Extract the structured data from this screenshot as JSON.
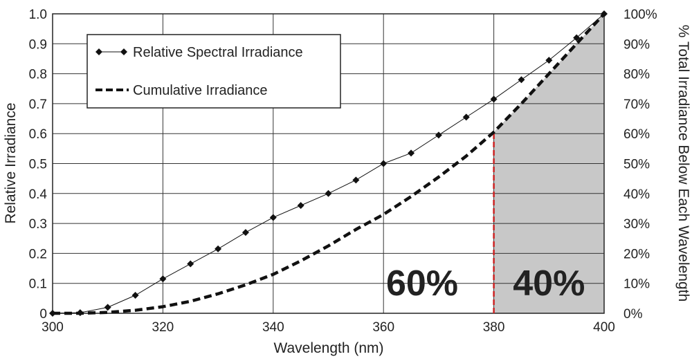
{
  "chart_data": {
    "type": "line",
    "title": "",
    "xlabel": "Wavelength (nm)",
    "ylabel": "Relative Irradiance",
    "y2label": "% Total Irradiance Below Each Wavelength",
    "xlim": [
      300,
      400
    ],
    "ylim": [
      0,
      1.0
    ],
    "y2lim": [
      0,
      100
    ],
    "grid": true,
    "x_ticks": [
      "300",
      "320",
      "340",
      "360",
      "380",
      "400"
    ],
    "y_ticks": [
      "0",
      "0.1",
      "0.2",
      "0.3",
      "0.4",
      "0.5",
      "0.6",
      "0.7",
      "0.8",
      "0.9",
      "1.0"
    ],
    "y2_ticks": [
      "0%",
      "10%",
      "20%",
      "30%",
      "40%",
      "50%",
      "60%",
      "70%",
      "80%",
      "90%",
      "100%"
    ],
    "legend_position": "top-left",
    "series": [
      {
        "name": "Relative Spectral Irradiance",
        "style": "solid-with-diamond-markers",
        "axis": "left",
        "x": [
          300,
          305,
          310,
          315,
          320,
          325,
          330,
          335,
          340,
          345,
          350,
          355,
          360,
          365,
          370,
          375,
          380,
          385,
          390,
          395,
          400
        ],
        "values": [
          0.0,
          0.002,
          0.02,
          0.06,
          0.115,
          0.165,
          0.215,
          0.27,
          0.32,
          0.36,
          0.4,
          0.445,
          0.5,
          0.535,
          0.595,
          0.655,
          0.715,
          0.78,
          0.845,
          0.92,
          1.0
        ]
      },
      {
        "name": "Cumulative Irradiance",
        "style": "dashed",
        "axis": "right",
        "x": [
          300,
          305,
          310,
          315,
          320,
          325,
          330,
          335,
          340,
          345,
          350,
          355,
          360,
          365,
          370,
          375,
          380,
          385,
          390,
          395,
          400
        ],
        "values": [
          0,
          0,
          0.3,
          1,
          2.2,
          4,
          6.5,
          9.5,
          13,
          17.5,
          22.5,
          28,
          33,
          39,
          45.5,
          52.5,
          60.5,
          70,
          80,
          90,
          100
        ]
      }
    ],
    "threshold": {
      "x": 380,
      "y": 0.6,
      "color": "#cc2222",
      "style": "dashed"
    },
    "shaded_region": {
      "x_start": 380,
      "x_end": 400,
      "color": "#c8c8c8"
    },
    "annotations": [
      {
        "text": "60%",
        "x": 367,
        "y": 0.06
      },
      {
        "text": "40%",
        "x": 390,
        "y": 0.06
      }
    ],
    "colors": {
      "line": "#111111",
      "grid": "#333333",
      "shade": "#c8c8c8",
      "threshold": "#cc2222"
    }
  }
}
